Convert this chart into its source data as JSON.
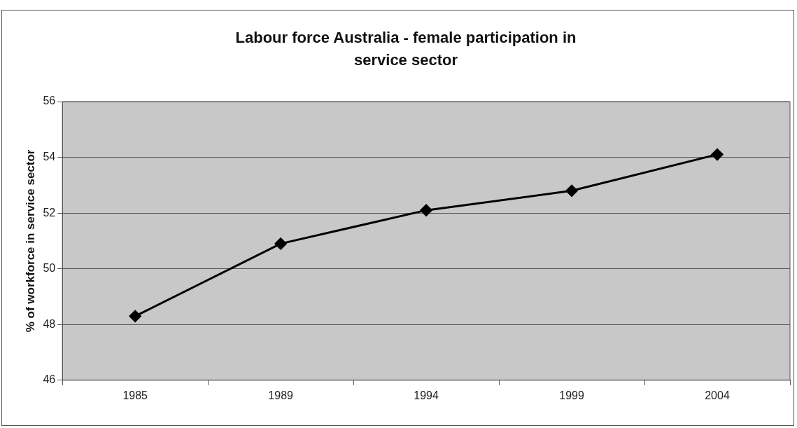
{
  "chart_data": {
    "type": "line",
    "title": "Labour force Australia - female participation in service sector",
    "ylabel": "% of workforce in service sector",
    "categories": [
      "1985",
      "1989",
      "1994",
      "1999",
      "2004"
    ],
    "series": [
      {
        "color": "#000000",
        "values": [
          48.3,
          50.9,
          52.1,
          52.8,
          54.1
        ]
      }
    ],
    "ylim": [
      46,
      56
    ],
    "yticks": [
      46,
      48,
      50,
      52,
      54,
      56
    ],
    "grid": "y",
    "legend": false,
    "marker": "diamond",
    "line_style": "solid"
  }
}
